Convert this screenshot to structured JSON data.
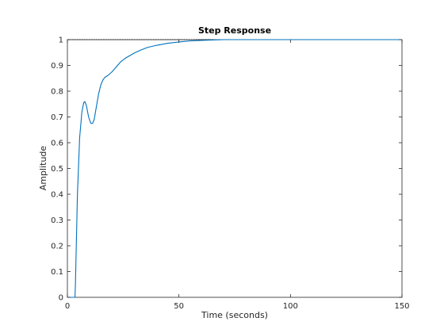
{
  "chart_data": {
    "type": "line",
    "title": "Step Response",
    "xlabel": "Time (seconds)",
    "ylabel": "Amplitude",
    "xlim": [
      0,
      150
    ],
    "ylim": [
      0,
      1
    ],
    "xticks": [
      0,
      50,
      100,
      150
    ],
    "xtick_labels": [
      "0",
      "50",
      "100",
      "150"
    ],
    "yticks": [
      0,
      0.1,
      0.2,
      0.3,
      0.4,
      0.5,
      0.6,
      0.7,
      0.8,
      0.9,
      1
    ],
    "ytick_labels": [
      "0",
      "0.1",
      "0.2",
      "0.3",
      "0.4",
      "0.5",
      "0.6",
      "0.7",
      "0.8",
      "0.9",
      "1"
    ],
    "grid": false,
    "reference_line": {
      "y": 1,
      "x_range": [
        0,
        66
      ],
      "color": "#000000",
      "style": "dotted"
    },
    "series": [
      {
        "color": "#0072bd",
        "x": [
          0,
          3.4,
          3.6,
          4.5,
          5.5,
          6.5,
          7.3,
          7.8,
          8.5,
          9.5,
          10.5,
          11.3,
          12,
          13,
          14,
          15,
          16,
          17,
          18,
          20,
          22,
          24,
          26,
          28,
          30,
          33,
          36,
          40,
          45,
          50,
          55,
          60,
          66,
          70,
          80,
          100,
          150
        ],
        "y": [
          0,
          0,
          0.05,
          0.4,
          0.62,
          0.72,
          0.755,
          0.76,
          0.745,
          0.7,
          0.675,
          0.675,
          0.69,
          0.74,
          0.79,
          0.825,
          0.845,
          0.855,
          0.86,
          0.875,
          0.895,
          0.915,
          0.928,
          0.938,
          0.948,
          0.96,
          0.97,
          0.978,
          0.986,
          0.991,
          0.995,
          0.997,
          0.999,
          1,
          1,
          1,
          1
        ]
      }
    ]
  }
}
